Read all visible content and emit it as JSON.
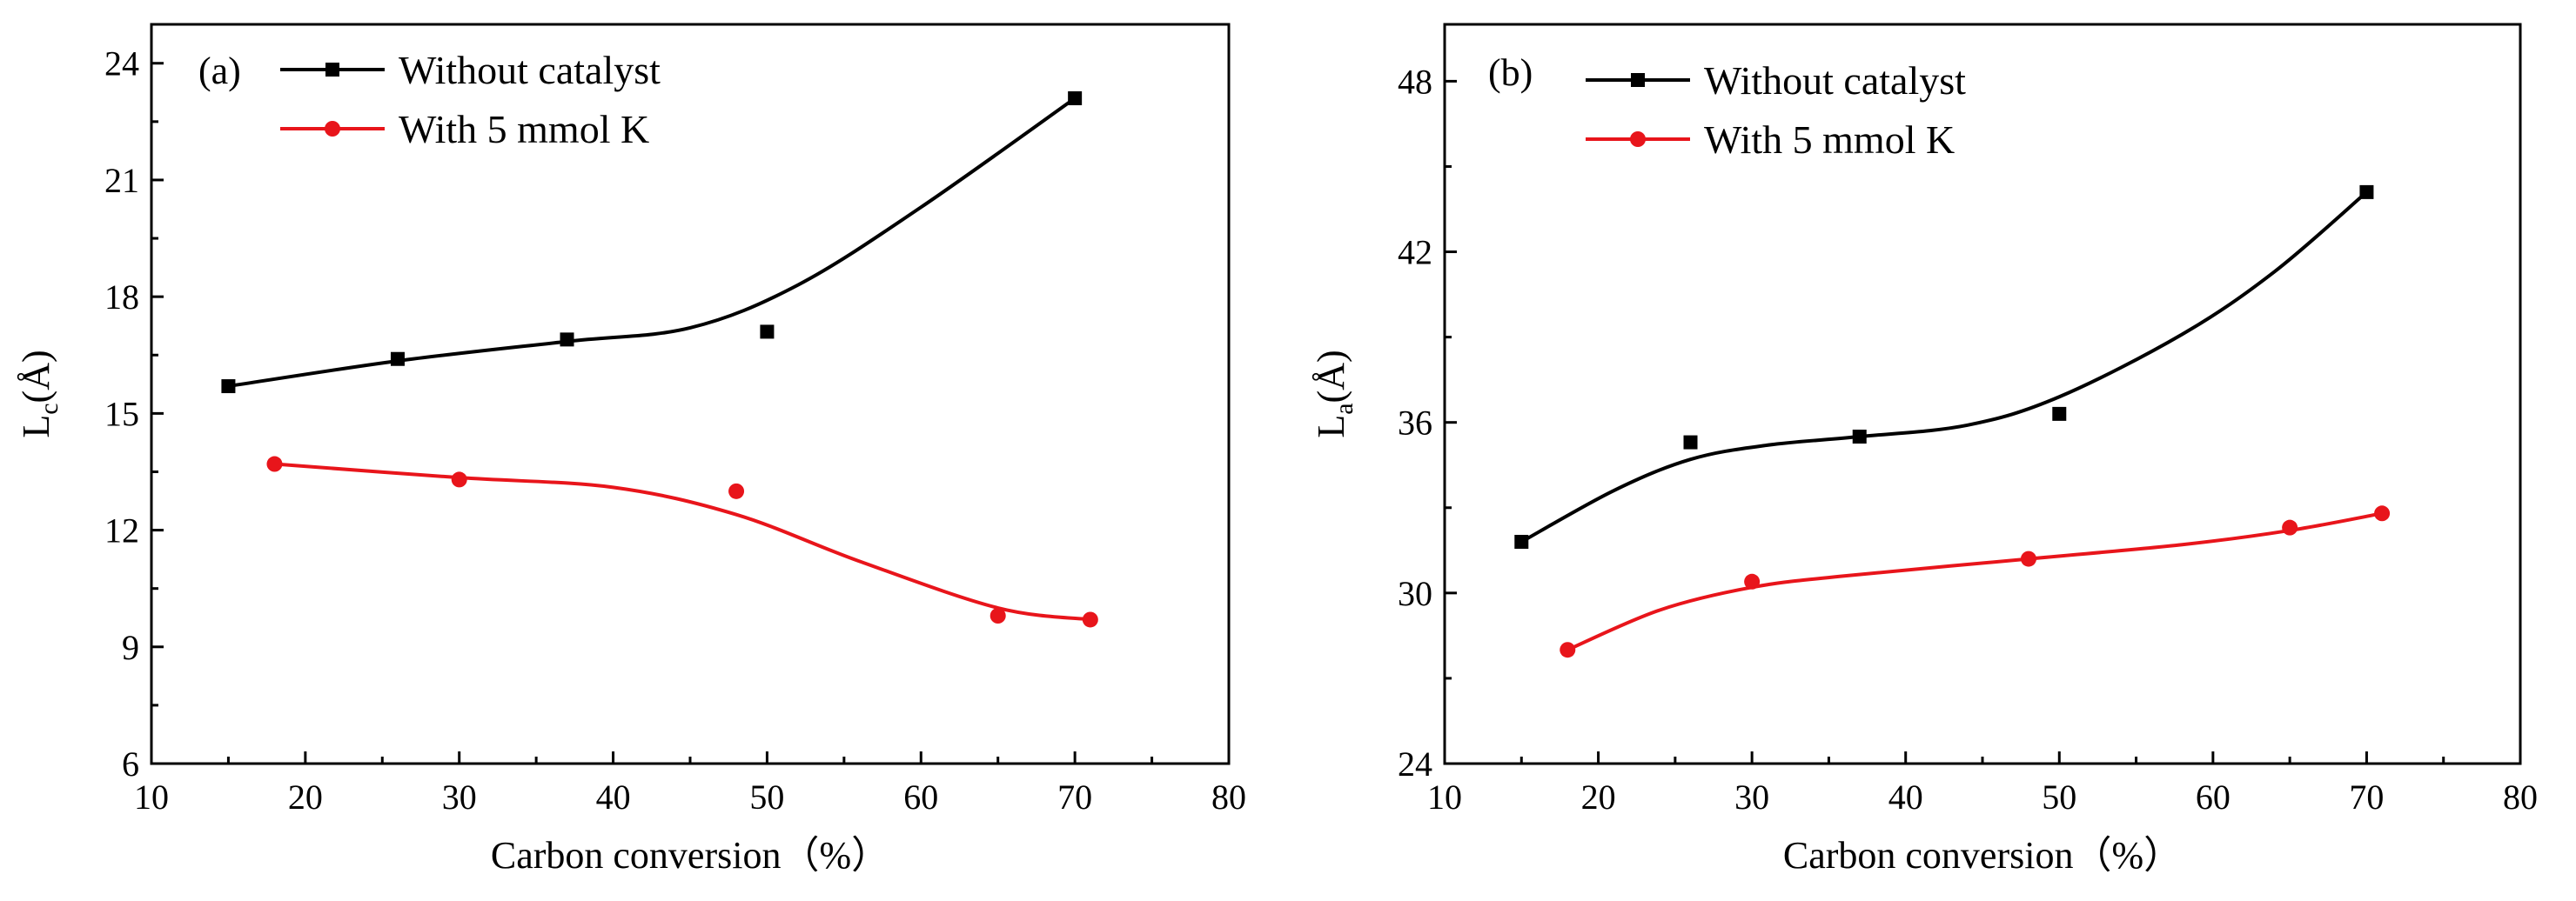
{
  "chart_data": [
    {
      "type": "line",
      "panel_label": "(a)",
      "title": "",
      "xlabel": "Carbon conversion（%）",
      "ylabel": {
        "main": "L",
        "sub": "c",
        "unit": "(Å)"
      },
      "xlim": [
        10,
        80
      ],
      "ylim": [
        6,
        25
      ],
      "xticks": [
        10,
        20,
        30,
        40,
        50,
        60,
        70,
        80
      ],
      "yticks": [
        6,
        9,
        12,
        15,
        18,
        21,
        24
      ],
      "legend_position": "top-left",
      "series": [
        {
          "name": "Without catalyst",
          "color": "#000000",
          "marker": "square",
          "x": [
            15,
            26,
            37,
            50,
            70
          ],
          "y": [
            15.7,
            16.4,
            16.9,
            17.1,
            23.1
          ],
          "fit": {
            "x": [
              15,
              26,
              37,
              45,
              52,
              60,
              70
            ],
            "y": [
              15.7,
              16.35,
              16.85,
              17.2,
              18.3,
              20.3,
              23.1
            ]
          }
        },
        {
          "name": "With 5 mmol K",
          "color": "#e8151b",
          "marker": "circle",
          "x": [
            18,
            30,
            48,
            65,
            71
          ],
          "y": [
            13.7,
            13.3,
            13.0,
            9.8,
            9.7
          ],
          "fit": {
            "x": [
              18,
              30,
              40,
              48,
              56,
              65,
              71
            ],
            "y": [
              13.7,
              13.35,
              13.1,
              12.4,
              11.2,
              10.0,
              9.7
            ]
          }
        }
      ]
    },
    {
      "type": "line",
      "panel_label": "(b)",
      "title": "",
      "xlabel": "Carbon conversion（%）",
      "ylabel": {
        "main": "L",
        "sub": "a",
        "unit": "(Å)"
      },
      "xlim": [
        10,
        80
      ],
      "ylim": [
        24,
        50
      ],
      "xticks": [
        10,
        20,
        30,
        40,
        50,
        60,
        70,
        80
      ],
      "yticks": [
        24,
        30,
        36,
        42,
        48
      ],
      "legend_position": "top-left",
      "series": [
        {
          "name": "Without catalyst",
          "color": "#000000",
          "marker": "square",
          "x": [
            15,
            26,
            37,
            50,
            70
          ],
          "y": [
            31.8,
            35.3,
            35.5,
            36.3,
            44.1
          ],
          "fit": {
            "x": [
              15,
              21,
              26,
              31,
              37,
              44,
              50,
              58,
              64,
              70
            ],
            "y": [
              31.8,
              33.6,
              34.7,
              35.2,
              35.5,
              35.9,
              36.9,
              39.1,
              41.3,
              44.1
            ]
          }
        },
        {
          "name": "With 5 mmol K",
          "color": "#e8151b",
          "marker": "circle",
          "x": [
            18,
            30,
            48,
            65,
            71
          ],
          "y": [
            28.0,
            30.4,
            31.2,
            32.3,
            32.8
          ],
          "fit": {
            "x": [
              18,
              24,
              30,
              36,
              48,
              58,
              65,
              71
            ],
            "y": [
              28.0,
              29.4,
              30.2,
              30.6,
              31.2,
              31.7,
              32.2,
              32.8
            ]
          }
        }
      ]
    }
  ]
}
